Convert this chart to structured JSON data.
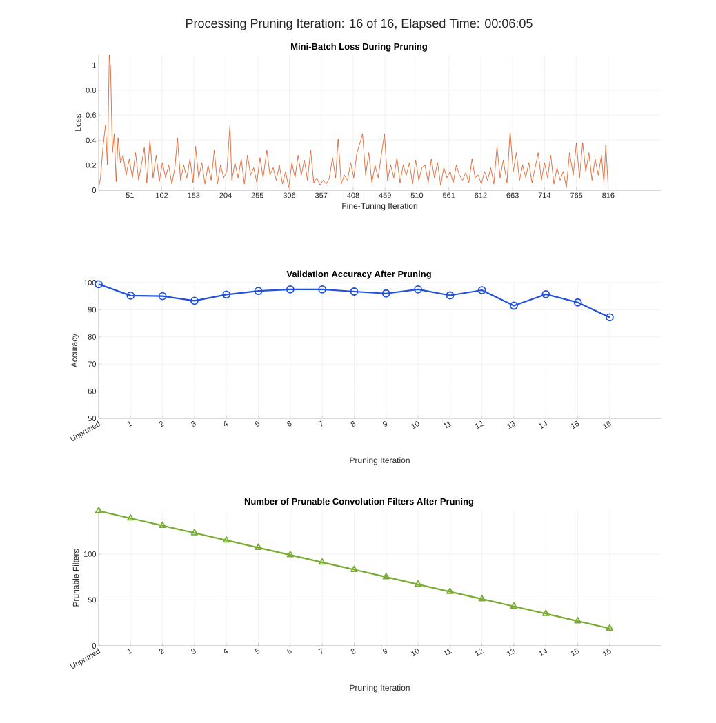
{
  "chart_data": [
    {
      "type": "line",
      "title": "Processing Pruning Iteration: 16 of 16, Elapsed Time: 00:06:05",
      "subtitle": "Mini-Batch Loss During Pruning",
      "xlabel": "Fine-Tuning Iteration",
      "ylabel": "Loss",
      "color": "#d95319",
      "grid": true,
      "x": [
        1,
        4,
        8,
        12,
        15,
        18,
        20,
        23,
        26,
        29,
        32,
        36,
        40,
        45,
        50,
        55,
        60,
        65,
        70,
        74,
        78,
        83,
        88,
        93,
        98,
        103,
        108,
        113,
        118,
        123,
        127,
        132,
        137,
        142,
        147,
        152,
        156,
        161,
        166,
        171,
        176,
        181,
        186,
        191,
        196,
        201,
        206,
        211,
        214,
        219,
        224,
        229,
        234,
        239,
        244,
        249,
        254,
        259,
        264,
        270,
        275,
        280,
        285,
        290,
        295,
        300,
        305,
        310,
        315,
        320,
        325,
        330,
        335,
        340,
        345,
        350,
        355,
        360,
        365,
        370,
        375,
        380,
        384,
        389,
        394,
        399,
        404,
        409,
        414,
        419,
        423,
        428,
        433,
        438,
        443,
        448,
        453,
        458,
        463,
        468,
        473,
        478,
        483,
        488,
        493,
        498,
        503,
        508,
        513,
        518,
        523,
        528,
        533,
        538,
        543,
        548,
        553,
        558,
        563,
        568,
        573,
        578,
        583,
        588,
        593,
        598,
        603,
        608,
        613,
        618,
        623,
        628,
        633,
        638,
        643,
        648,
        654,
        659,
        664,
        669,
        674,
        679,
        684,
        689,
        694,
        699,
        704,
        709,
        714,
        719,
        724,
        729,
        734,
        739,
        744,
        749,
        754,
        760,
        765,
        770,
        775,
        780,
        785,
        790,
        795,
        800,
        805,
        809,
        812,
        816
      ],
      "values": [
        0.02,
        0.1,
        0.35,
        0.52,
        0.2,
        1.08,
        0.98,
        0.3,
        0.45,
        0.07,
        0.42,
        0.22,
        0.28,
        0.12,
        0.25,
        0.1,
        0.3,
        0.08,
        0.22,
        0.34,
        0.06,
        0.4,
        0.1,
        0.28,
        0.07,
        0.22,
        0.1,
        0.2,
        0.05,
        0.18,
        0.42,
        0.08,
        0.2,
        0.1,
        0.25,
        0.06,
        0.35,
        0.1,
        0.22,
        0.05,
        0.2,
        0.08,
        0.32,
        0.05,
        0.2,
        0.1,
        0.15,
        0.52,
        0.08,
        0.22,
        0.1,
        0.25,
        0.05,
        0.28,
        0.12,
        0.18,
        0.06,
        0.26,
        0.1,
        0.32,
        0.12,
        0.18,
        0.08,
        0.2,
        0.05,
        0.15,
        0.02,
        0.22,
        0.1,
        0.28,
        0.12,
        0.24,
        0.08,
        0.32,
        0.06,
        0.1,
        0.04,
        0.08,
        0.05,
        0.1,
        0.26,
        0.1,
        0.41,
        0.05,
        0.12,
        0.08,
        0.22,
        0.1,
        0.3,
        0.38,
        0.45,
        0.12,
        0.3,
        0.06,
        0.2,
        0.1,
        0.28,
        0.45,
        0.08,
        0.2,
        0.1,
        0.26,
        0.06,
        0.2,
        0.12,
        0.22,
        0.05,
        0.24,
        0.08,
        0.18,
        0.2,
        0.06,
        0.25,
        0.1,
        0.22,
        0.04,
        0.18,
        0.1,
        0.15,
        0.06,
        0.2,
        0.12,
        0.08,
        0.14,
        0.06,
        0.25,
        0.1,
        0.12,
        0.05,
        0.15,
        0.08,
        0.18,
        0.05,
        0.35,
        0.1,
        0.24,
        0.06,
        0.47,
        0.15,
        0.3,
        0.08,
        0.2,
        0.1,
        0.22,
        0.06,
        0.18,
        0.3,
        0.08,
        0.22,
        0.1,
        0.28,
        0.05,
        0.18,
        0.08,
        0.15,
        0.02,
        0.3,
        0.12,
        0.38,
        0.1,
        0.38,
        0.15,
        0.3,
        0.08,
        0.25,
        0.12,
        0.28,
        0.06,
        0.36,
        0.02
      ],
      "xlim": [
        1,
        900
      ],
      "ylim": [
        0,
        1.08
      ],
      "xticks": [
        51,
        102,
        153,
        204,
        255,
        306,
        357,
        408,
        459,
        510,
        561,
        612,
        663,
        714,
        765,
        816
      ],
      "yticks": [
        0,
        0.2,
        0.4,
        0.6,
        0.8,
        1
      ]
    },
    {
      "type": "line",
      "title": "Validation Accuracy After Pruning",
      "xlabel": "Pruning Iteration",
      "ylabel": "Accuracy",
      "color": "#1f50e0",
      "grid": true,
      "marker": "circle",
      "categories": [
        "Unpruned",
        "1",
        "2",
        "3",
        "4",
        "5",
        "6",
        "7",
        "8",
        "9",
        "10",
        "11",
        "12",
        "13",
        "14",
        "15",
        "16"
      ],
      "values": [
        99.4,
        95.2,
        95.0,
        93.3,
        95.6,
        96.9,
        97.5,
        97.5,
        96.7,
        96.0,
        97.5,
        95.3,
        97.2,
        91.5,
        95.7,
        92.7,
        87.2
      ],
      "ylim": [
        50,
        100
      ],
      "yticks": [
        50,
        60,
        70,
        80,
        90,
        100
      ]
    },
    {
      "type": "line",
      "title": "Number of Prunable Convolution Filters After Pruning",
      "xlabel": "Pruning Iteration",
      "ylabel": "Prunable Filters",
      "color": "#77ac30",
      "grid": true,
      "marker": "triangle",
      "categories": [
        "Unpruned",
        "1",
        "2",
        "3",
        "4",
        "5",
        "6",
        "7",
        "8",
        "9",
        "10",
        "11",
        "12",
        "13",
        "14",
        "15",
        "16"
      ],
      "values": [
        147,
        139,
        131,
        123,
        115,
        107,
        99,
        91,
        83,
        75,
        67,
        59,
        51,
        43,
        35,
        27,
        19
      ],
      "ylim": [
        0,
        148
      ],
      "yticks": [
        0,
        50,
        100
      ]
    }
  ]
}
